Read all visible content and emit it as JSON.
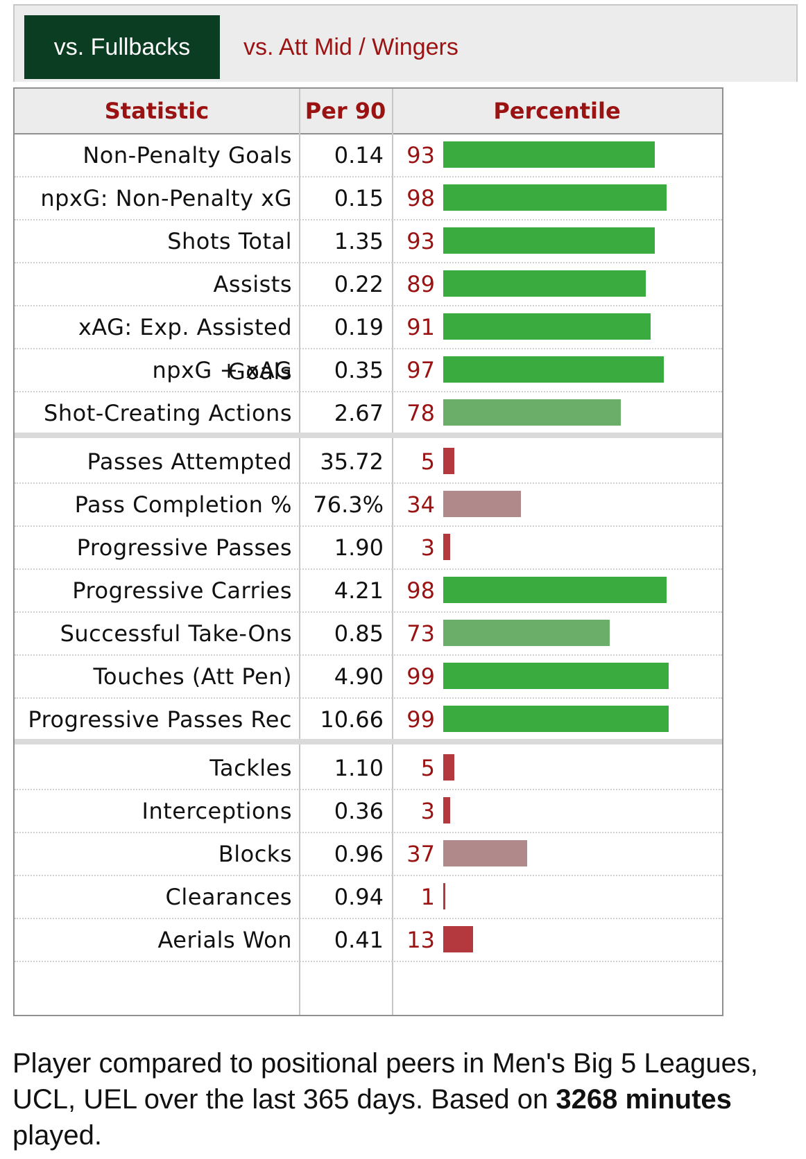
{
  "tabs": {
    "active": "vs. Fullbacks",
    "inactive": "vs. Att Mid / Wingers"
  },
  "table": {
    "headers": {
      "statistic": "Statistic",
      "per90": "Per 90",
      "percentile": "Percentile"
    },
    "colors": {
      "high": "#3aab3f",
      "high_mid": "#6aae6a",
      "low_mid": "#b08a8a",
      "low": "#b3393f"
    },
    "groups": [
      [
        {
          "name": "Non-Penalty Goals",
          "value": "0.14",
          "percentile": 93
        },
        {
          "name": "npxG: Non-Penalty xG",
          "value": "0.15",
          "percentile": 98
        },
        {
          "name": "Shots Total",
          "value": "1.35",
          "percentile": 93
        },
        {
          "name": "Assists",
          "value": "0.22",
          "percentile": 89
        },
        {
          "name": "xAG: Exp. Assisted Goals",
          "value": "0.19",
          "percentile": 91
        },
        {
          "name": "npxG + xAG",
          "value": "0.35",
          "percentile": 97
        },
        {
          "name": "Shot-Creating Actions",
          "value": "2.67",
          "percentile": 78
        }
      ],
      [
        {
          "name": "Passes Attempted",
          "value": "35.72",
          "percentile": 5
        },
        {
          "name": "Pass Completion %",
          "value": "76.3%",
          "percentile": 34
        },
        {
          "name": "Progressive Passes",
          "value": "1.90",
          "percentile": 3
        },
        {
          "name": "Progressive Carries",
          "value": "4.21",
          "percentile": 98
        },
        {
          "name": "Successful Take-Ons",
          "value": "0.85",
          "percentile": 73
        },
        {
          "name": "Touches (Att Pen)",
          "value": "4.90",
          "percentile": 99
        },
        {
          "name": "Progressive Passes Rec",
          "value": "10.66",
          "percentile": 99
        }
      ],
      [
        {
          "name": "Tackles",
          "value": "1.10",
          "percentile": 5
        },
        {
          "name": "Interceptions",
          "value": "0.36",
          "percentile": 3
        },
        {
          "name": "Blocks",
          "value": "0.96",
          "percentile": 37
        },
        {
          "name": "Clearances",
          "value": "0.94",
          "percentile": 1
        },
        {
          "name": "Aerials Won",
          "value": "0.41",
          "percentile": 13
        }
      ]
    ]
  },
  "note": {
    "text_before": "Player compared to positional peers in Men's Big 5 Leagues, UCL, UEL over the last 365 days. Based on ",
    "minutes": "3268",
    "text_between": " ",
    "minutes_label": "minutes",
    "text_after": " played."
  }
}
